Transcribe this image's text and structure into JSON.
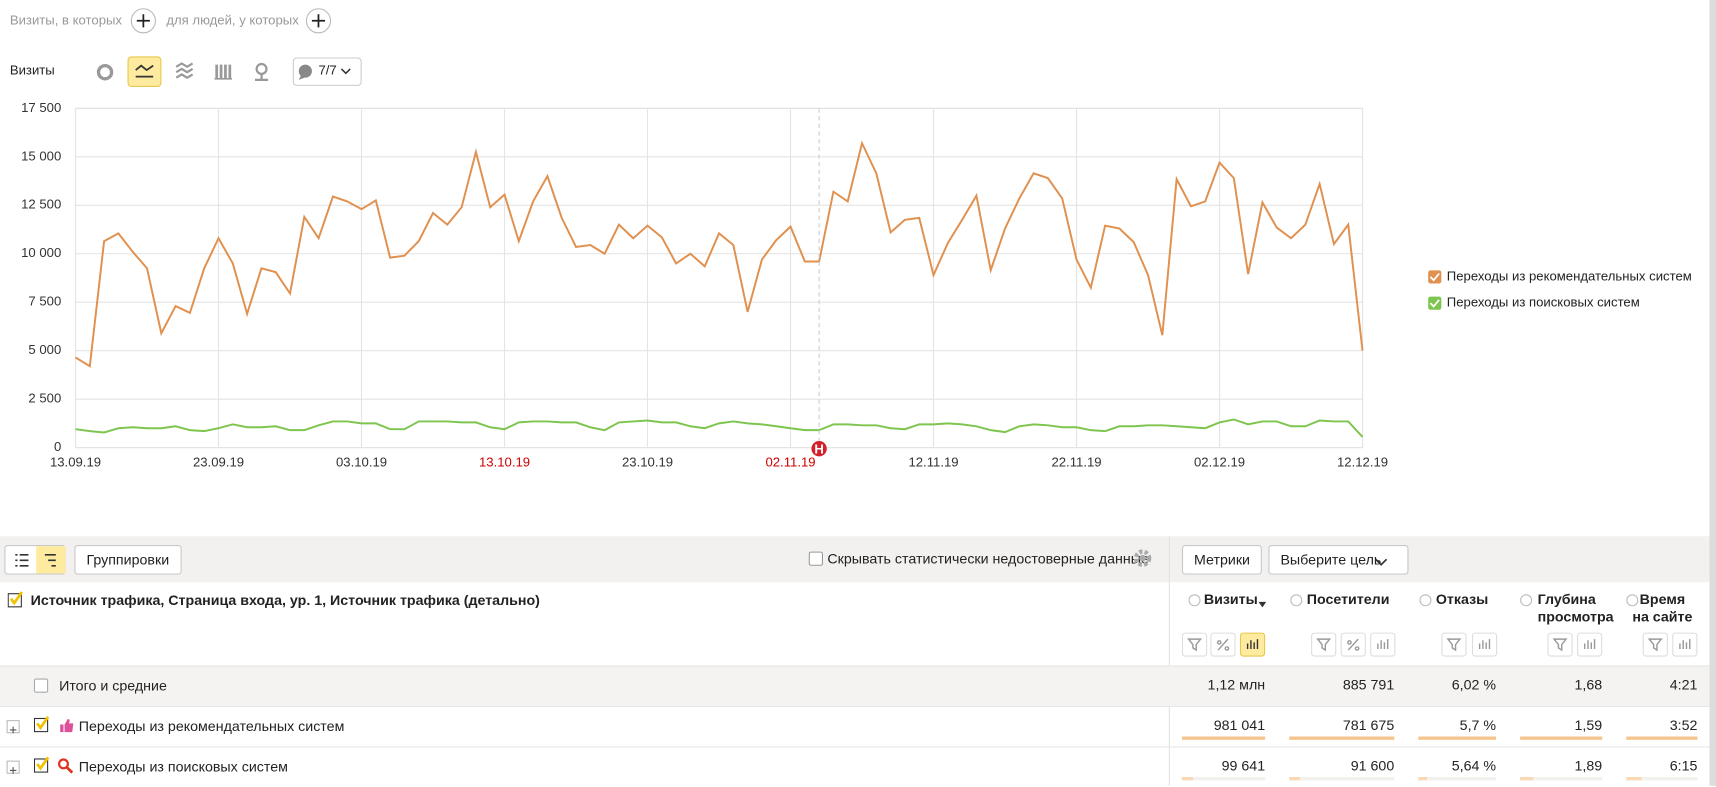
{
  "filters": {
    "visits_in": "Визиты, в которых",
    "people_with": "для людей, у которых"
  },
  "chart_header": {
    "title": "Визиты",
    "notes_button": "7/7"
  },
  "chart_data": {
    "type": "line",
    "x": [
      "13.09.19",
      "14.09.19",
      "15.09.19",
      "16.09.19",
      "17.09.19",
      "18.09.19",
      "19.09.19",
      "20.09.19",
      "21.09.19",
      "22.09.19",
      "23.09.19",
      "24.09.19",
      "25.09.19",
      "26.09.19",
      "27.09.19",
      "28.09.19",
      "29.09.19",
      "30.09.19",
      "01.10.19",
      "02.10.19",
      "03.10.19",
      "04.10.19",
      "05.10.19",
      "06.10.19",
      "07.10.19",
      "08.10.19",
      "09.10.19",
      "10.10.19",
      "11.10.19",
      "12.10.19",
      "13.10.19",
      "14.10.19",
      "15.10.19",
      "16.10.19",
      "17.10.19",
      "18.10.19",
      "19.10.19",
      "20.10.19",
      "21.10.19",
      "22.10.19",
      "23.10.19",
      "24.10.19",
      "25.10.19",
      "26.10.19",
      "27.10.19",
      "28.10.19",
      "29.10.19",
      "30.10.19",
      "31.10.19",
      "01.11.19",
      "02.11.19",
      "03.11.19",
      "04.11.19",
      "05.11.19",
      "06.11.19",
      "07.11.19",
      "08.11.19",
      "09.11.19",
      "10.11.19",
      "11.11.19",
      "12.11.19",
      "13.11.19",
      "14.11.19",
      "15.11.19",
      "16.11.19",
      "17.11.19",
      "18.11.19",
      "19.11.19",
      "20.11.19",
      "21.11.19",
      "22.11.19",
      "23.11.19",
      "24.11.19",
      "25.11.19",
      "26.11.19",
      "27.11.19",
      "28.11.19",
      "29.11.19",
      "30.11.19",
      "01.12.19",
      "02.12.19",
      "03.12.19",
      "04.12.19",
      "05.12.19",
      "06.12.19",
      "07.12.19",
      "08.12.19",
      "09.12.19",
      "10.12.19",
      "11.12.19",
      "12.12.19"
    ],
    "xticks": [
      "13.09.19",
      "23.09.19",
      "03.10.19",
      "13.10.19",
      "23.10.19",
      "02.11.19",
      "12.11.19",
      "22.11.19",
      "02.12.19",
      "12.12.19"
    ],
    "xtick_colors": [
      "#333333",
      "#333333",
      "#333333",
      "#cc0000",
      "#333333",
      "#cc0000",
      "#333333",
      "#333333",
      "#333333",
      "#333333"
    ],
    "ylim": [
      0,
      17500
    ],
    "yticks": [
      0,
      {
        "value": 2500,
        "label": "2 500"
      },
      {
        "value": 5000,
        "label": "5 000"
      },
      {
        "value": 7500,
        "label": "7 500"
      },
      {
        "value": 10000,
        "label": "10 000"
      },
      {
        "value": 12500,
        "label": "12 500"
      },
      {
        "value": 15000,
        "label": "15 000"
      },
      {
        "value": 17500,
        "label": "17 500"
      }
    ],
    "grid": true,
    "legend": "right",
    "series": [
      {
        "name": "Переходы из рекомендательных систем",
        "color": "#e0904f",
        "values": [
          4650,
          4200,
          10650,
          11050,
          10100,
          9250,
          5900,
          7300,
          6950,
          9250,
          10800,
          9500,
          6900,
          9250,
          9050,
          7950,
          11900,
          10800,
          12950,
          12700,
          12300,
          12750,
          9800,
          9900,
          10650,
          12100,
          11500,
          12400,
          15250,
          12400,
          13050,
          10650,
          12700,
          14000,
          11850,
          10350,
          10450,
          10000,
          11500,
          10800,
          11450,
          10850,
          9500,
          10000,
          9350,
          11050,
          10450,
          7000,
          9700,
          10700,
          11400,
          9600,
          9600,
          13200,
          12700,
          15700,
          14150,
          11100,
          11750,
          11850,
          8900,
          10550,
          11750,
          13000,
          9150,
          11300,
          12850,
          14150,
          13900,
          12850,
          9700,
          8250,
          11450,
          11300,
          10600,
          8900,
          5800,
          13850,
          12450,
          12700,
          14700,
          13900,
          8950,
          12650,
          11350,
          10800,
          11500,
          13600,
          10500,
          11500,
          5000
        ]
      },
      {
        "name": "Переходы из поисковых систем",
        "color": "#7dc54e",
        "values": [
          950,
          850,
          780,
          1000,
          1050,
          1000,
          1000,
          1100,
          900,
          850,
          1000,
          1200,
          1050,
          1050,
          1100,
          900,
          900,
          1150,
          1350,
          1350,
          1250,
          1250,
          950,
          950,
          1350,
          1350,
          1350,
          1300,
          1300,
          1050,
          950,
          1300,
          1350,
          1350,
          1300,
          1300,
          1050,
          900,
          1300,
          1350,
          1400,
          1300,
          1300,
          1100,
          1000,
          1250,
          1350,
          1250,
          1200,
          1100,
          1000,
          900,
          900,
          1200,
          1200,
          1150,
          1150,
          1000,
          950,
          1200,
          1200,
          1250,
          1200,
          1100,
          900,
          800,
          1100,
          1200,
          1150,
          1050,
          1050,
          900,
          850,
          1100,
          1100,
          1150,
          1150,
          1100,
          1050,
          1000,
          1300,
          1450,
          1200,
          1350,
          1350,
          1100,
          1100,
          1400,
          1350,
          1350,
          550
        ]
      }
    ],
    "annotations": [
      {
        "x": "04.11.19",
        "label": "Н"
      }
    ]
  },
  "toolbar": {
    "groupings": "Группировки",
    "hide_unreliable": "Скрывать статистически недостоверные данные",
    "metrics": "Метрики",
    "goal": "Выберите цель"
  },
  "table": {
    "dimension_header": "Источник трафика, Страница входа, ур. 1, Источник трафика (детально)",
    "columns": [
      "Визиты",
      "Посетители",
      "Отказы",
      "Глубина просмотра",
      "Время на сайте"
    ],
    "rows": [
      {
        "label": "Итого и средние",
        "cells": [
          "1,12 млн",
          "885 791",
          "6,02 %",
          "1,68",
          "4:21"
        ]
      },
      {
        "label": "Переходы из рекомендательных систем",
        "cells": [
          "981 041",
          "781 675",
          "5,7 %",
          "1,59",
          "3:52"
        ]
      },
      {
        "label": "Переходы из поисковых систем",
        "cells": [
          "99 641",
          "91 600",
          "5,64 %",
          "1,89",
          "6:15"
        ]
      }
    ]
  }
}
